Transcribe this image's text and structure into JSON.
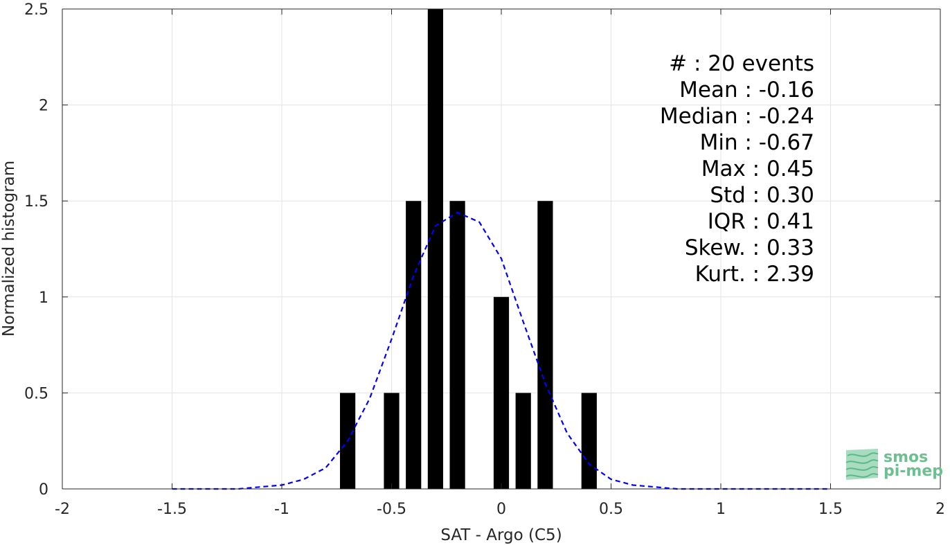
{
  "chart_data": {
    "type": "bar",
    "xlabel": "SAT - Argo (C5)",
    "ylabel": "Normalized histogram",
    "xlim": [
      -2,
      2
    ],
    "ylim": [
      0,
      2.5
    ],
    "xticks": [
      -2,
      -1.5,
      -1,
      -0.5,
      0,
      0.5,
      1,
      1.5,
      2
    ],
    "xtick_labels": [
      "-2",
      "-1.5",
      "-1",
      "-0.5",
      "0",
      "0.5",
      "1",
      "1.5",
      "2"
    ],
    "yticks": [
      0,
      0.5,
      1,
      1.5,
      2,
      2.5
    ],
    "ytick_labels": [
      "0",
      "0.5",
      "1",
      "1.5",
      "2",
      "2.5"
    ],
    "grid": true,
    "bar_width": 0.07,
    "bars": [
      {
        "x": -0.7,
        "value": 0.5
      },
      {
        "x": -0.5,
        "value": 0.5
      },
      {
        "x": -0.4,
        "value": 1.5
      },
      {
        "x": -0.3,
        "value": 2.5
      },
      {
        "x": -0.2,
        "value": 1.5
      },
      {
        "x": 0.0,
        "value": 1.0
      },
      {
        "x": 0.1,
        "value": 0.5
      },
      {
        "x": 0.2,
        "value": 1.5
      },
      {
        "x": 0.4,
        "value": 0.5
      }
    ],
    "bar_color": "#000000",
    "fit_curve": {
      "style": "dashed",
      "color": "#0000ff",
      "x": [
        -1.5,
        -1.4,
        -1.3,
        -1.2,
        -1.1,
        -1.0,
        -0.9,
        -0.8,
        -0.7,
        -0.6,
        -0.5,
        -0.4,
        -0.3,
        -0.2,
        -0.1,
        0.0,
        0.1,
        0.2,
        0.3,
        0.4,
        0.5,
        0.6,
        0.7,
        0.8,
        0.9,
        1.0,
        1.1,
        1.2,
        1.3,
        1.4,
        1.5
      ],
      "y": [
        0.0,
        0.0,
        0.0,
        0.0,
        0.01,
        0.02,
        0.05,
        0.11,
        0.25,
        0.47,
        0.78,
        1.11,
        1.37,
        1.44,
        1.39,
        1.2,
        0.87,
        0.55,
        0.29,
        0.13,
        0.05,
        0.02,
        0.01,
        0.0,
        0.0,
        0.0,
        0.0,
        0.0,
        0.0,
        0.0,
        0.0
      ]
    },
    "stats": [
      "#  : 20 events",
      "Mean : -0.16",
      "Median : -0.24",
      "Min : -0.67",
      "Max : 0.45",
      "Std : 0.30",
      "IQR : 0.41",
      "Skew. : 0.33",
      "Kurt. : 2.39"
    ]
  },
  "logo": {
    "line1": "smos",
    "line2": "pi-mep",
    "color": "#6cbf8f"
  }
}
